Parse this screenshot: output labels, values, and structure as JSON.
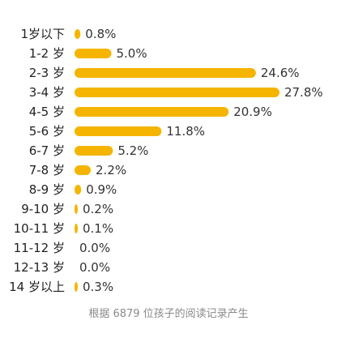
{
  "chart_data": {
    "type": "bar",
    "orientation": "horizontal",
    "categories": [
      "1岁以下",
      "1-2 岁",
      "2-3 岁",
      "3-4 岁",
      "4-5 岁",
      "5-6 岁",
      "6-7 岁",
      "7-8 岁",
      "8-9 岁",
      "9-10 岁",
      "10-11 岁",
      "11-12 岁",
      "12-13 岁",
      "14 岁以上"
    ],
    "values": [
      0.8,
      5.0,
      24.6,
      27.8,
      20.9,
      11.8,
      5.2,
      2.2,
      0.9,
      0.2,
      0.1,
      0.0,
      0.0,
      0.3
    ],
    "value_labels": [
      "0.8%",
      "5.0%",
      "24.6%",
      "27.8%",
      "20.9%",
      "11.8%",
      "5.2%",
      "2.2%",
      "0.9%",
      "0.2%",
      "0.1%",
      "0.0%",
      "0.0%",
      "0.3%"
    ],
    "bar_color": "#F5B400",
    "caption": "根据 6879 位孩子的阅读记录产生",
    "grid": false,
    "legend": "none"
  }
}
